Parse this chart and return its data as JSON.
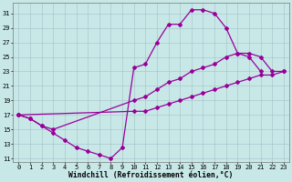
{
  "bg_color": "#c8e8e8",
  "grid_color": "#a8c8cc",
  "line_color": "#990099",
  "markersize": 2.0,
  "linewidth": 0.9,
  "xlabel": "Windchill (Refroidissement éolien,°C)",
  "xlabel_fontsize": 5.8,
  "tick_fontsize": 5.0,
  "xlim": [
    -0.5,
    23.5
  ],
  "ylim": [
    10.5,
    32.5
  ],
  "xticks": [
    0,
    1,
    2,
    3,
    4,
    5,
    6,
    7,
    8,
    9,
    10,
    11,
    12,
    13,
    14,
    15,
    16,
    17,
    18,
    19,
    20,
    21,
    22,
    23
  ],
  "yticks": [
    11,
    13,
    15,
    17,
    19,
    21,
    23,
    25,
    27,
    29,
    31
  ],
  "curveA_x": [
    0,
    1,
    2,
    3,
    4,
    5,
    6,
    7,
    8,
    9,
    10,
    11,
    12,
    13,
    14,
    15,
    16,
    17,
    18,
    19,
    20,
    21
  ],
  "curveA_y": [
    17,
    16.5,
    15.5,
    14.5,
    13.5,
    12.5,
    12.0,
    11.5,
    11.0,
    12.5,
    23.5,
    24.0,
    27.0,
    29.5,
    29.5,
    31.5,
    31.5,
    31.0,
    29.0,
    25.5,
    25.0,
    23.0
  ],
  "curveB_x": [
    0,
    1,
    2,
    3,
    10,
    11,
    12,
    13,
    14,
    15,
    16,
    17,
    18,
    19,
    20,
    21,
    22,
    23
  ],
  "curveB_y": [
    17,
    16.5,
    15.5,
    15.0,
    19.0,
    19.5,
    20.5,
    21.5,
    22.0,
    23.0,
    23.5,
    24.0,
    25.0,
    25.5,
    25.5,
    25.0,
    23.0,
    23.0
  ],
  "curveC_x": [
    0,
    10,
    11,
    12,
    13,
    14,
    15,
    16,
    17,
    18,
    19,
    20,
    21,
    22,
    23
  ],
  "curveC_y": [
    17,
    17.5,
    17.5,
    18.0,
    18.5,
    19.0,
    19.5,
    20.0,
    20.5,
    21.0,
    21.5,
    22.0,
    22.5,
    22.5,
    23.0
  ]
}
